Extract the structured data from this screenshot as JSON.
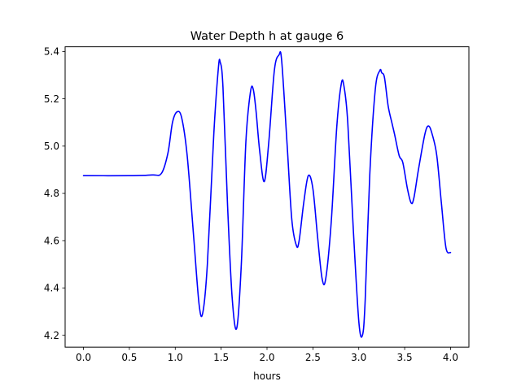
{
  "chart_data": {
    "type": "line",
    "title": "Water Depth h at gauge 6",
    "xlabel": "hours",
    "ylabel": "",
    "xlim": [
      -0.2,
      4.2
    ],
    "ylim": [
      4.15,
      5.42
    ],
    "grid": false,
    "xticks": [
      0.0,
      0.5,
      1.0,
      1.5,
      2.0,
      2.5,
      3.0,
      3.5,
      4.0
    ],
    "xtick_labels": [
      "0.0",
      "0.5",
      "1.0",
      "1.5",
      "2.0",
      "2.5",
      "3.0",
      "3.5",
      "4.0"
    ],
    "yticks": [
      4.2,
      4.4,
      4.6,
      4.8,
      5.0,
      5.2,
      5.4
    ],
    "ytick_labels": [
      "4.2",
      "4.4",
      "4.6",
      "4.8",
      "5.0",
      "5.2",
      "5.4"
    ],
    "series": [
      {
        "color": "#0000ff",
        "x": [
          0.0,
          0.5,
          0.75,
          0.85,
          0.92,
          0.97,
          1.02,
          1.07,
          1.13,
          1.2,
          1.26,
          1.3,
          1.35,
          1.42,
          1.47,
          1.49,
          1.52,
          1.57,
          1.62,
          1.67,
          1.72,
          1.77,
          1.82,
          1.85,
          1.88,
          1.92,
          1.97,
          2.02,
          2.08,
          2.13,
          2.16,
          2.22,
          2.27,
          2.32,
          2.35,
          2.4,
          2.45,
          2.5,
          2.55,
          2.6,
          2.64,
          2.7,
          2.76,
          2.81,
          2.84,
          2.88,
          2.94,
          3.0,
          3.04,
          3.07,
          3.12,
          3.18,
          3.23,
          3.25,
          3.28,
          3.32,
          3.36,
          3.39,
          3.44,
          3.48,
          3.53,
          3.57,
          3.6,
          3.65,
          3.72,
          3.76,
          3.8,
          3.85,
          3.9,
          3.95,
          4.0
        ],
        "y": [
          4.875,
          4.875,
          4.878,
          4.885,
          4.97,
          5.1,
          5.145,
          5.12,
          4.96,
          4.62,
          4.33,
          4.295,
          4.5,
          5.05,
          5.33,
          5.355,
          5.25,
          4.75,
          4.36,
          4.23,
          4.5,
          5.02,
          5.23,
          5.24,
          5.15,
          4.98,
          4.85,
          5.02,
          5.32,
          5.385,
          5.36,
          5.0,
          4.69,
          4.58,
          4.6,
          4.76,
          4.875,
          4.82,
          4.62,
          4.44,
          4.44,
          4.68,
          5.08,
          5.265,
          5.25,
          5.1,
          4.65,
          4.26,
          4.2,
          4.35,
          4.88,
          5.24,
          5.32,
          5.31,
          5.29,
          5.17,
          5.1,
          5.05,
          4.96,
          4.93,
          4.82,
          4.76,
          4.78,
          4.9,
          5.05,
          5.085,
          5.05,
          4.96,
          4.76,
          4.57,
          4.55
        ]
      }
    ]
  }
}
